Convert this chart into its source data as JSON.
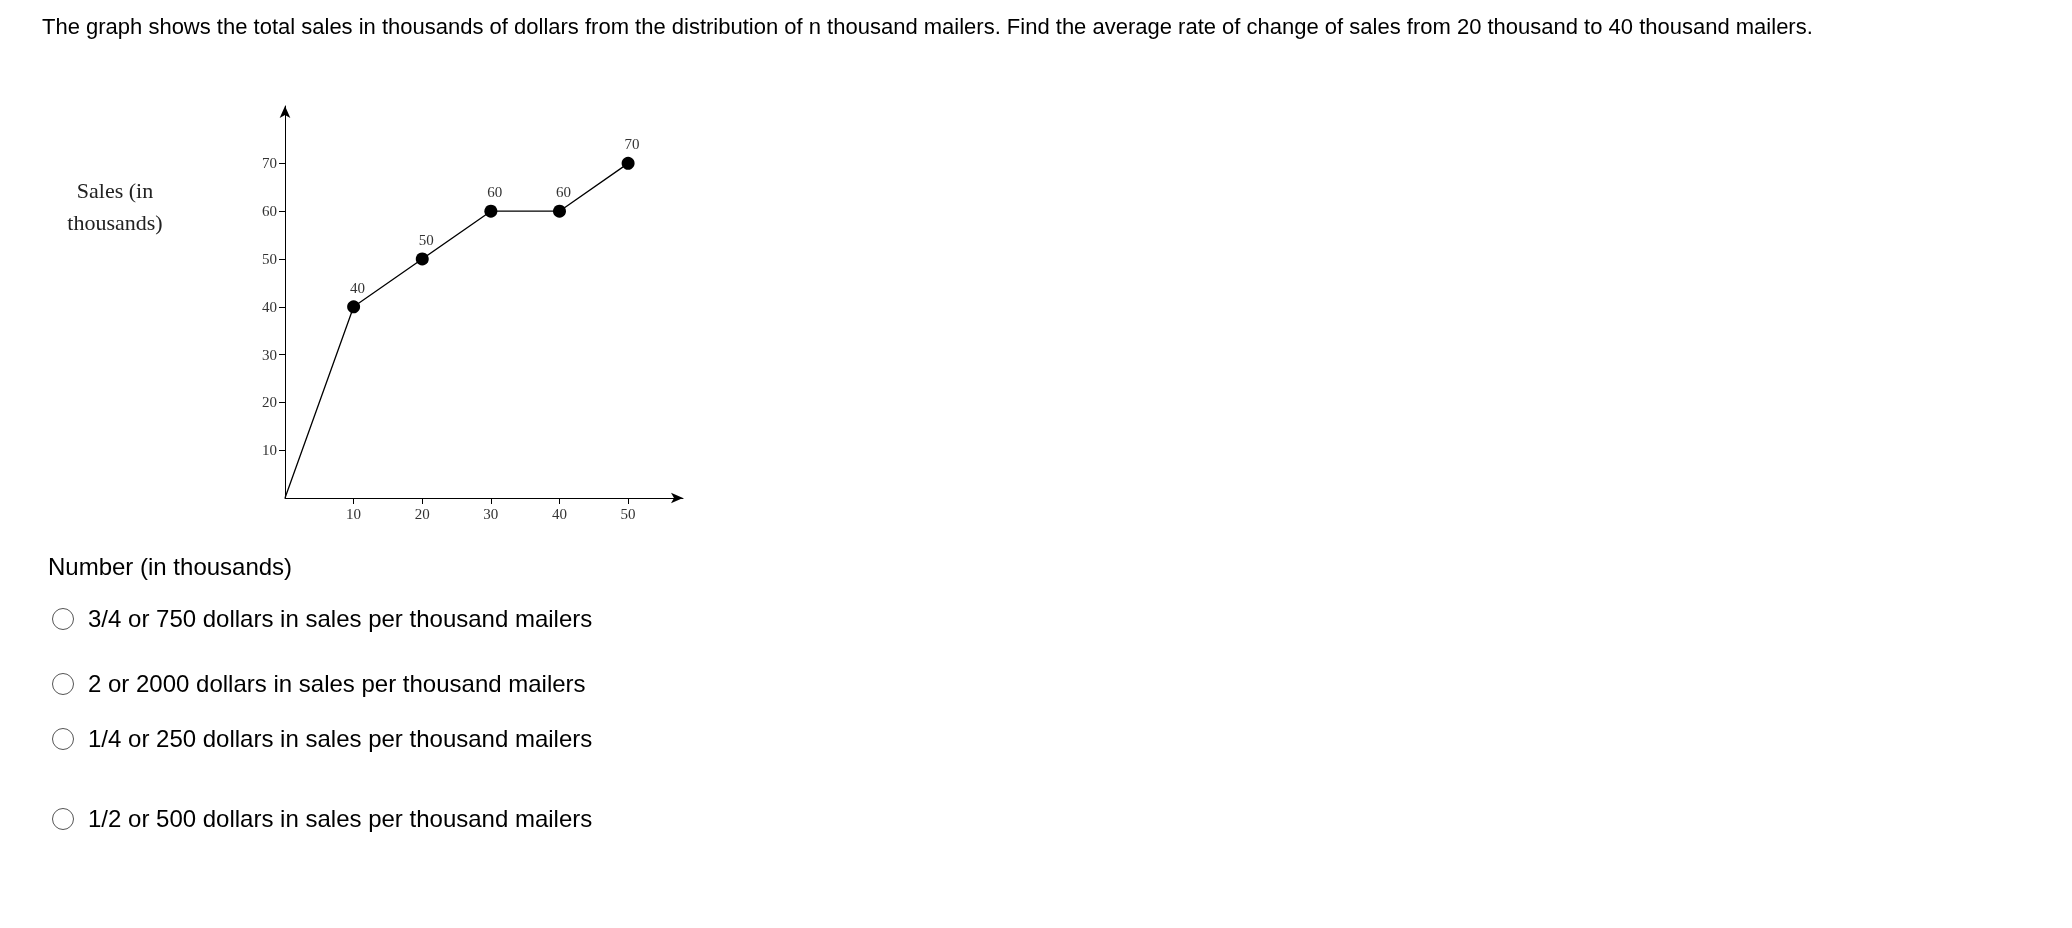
{
  "chart_data": {
    "type": "line",
    "title": "The graph shows the total sales in thousands of dollars from the distribution of n thousand mailers. Find the average rate of change of sales from 20 thousand to 40 thousand mailers.",
    "xlabel": "Number (in thousands)",
    "ylabel": "Sales (in thousands)",
    "x": [
      0,
      10,
      20,
      30,
      40,
      50
    ],
    "series": [
      {
        "color": "#000000",
        "values": [
          0,
          40,
          50,
          60,
          60,
          70
        ],
        "value_labels": [
          null,
          "40",
          "50",
          "60",
          "60",
          "70"
        ]
      }
    ],
    "xlim": [
      0,
      58
    ],
    "xticks": [
      10,
      20,
      30,
      40,
      50
    ],
    "ylim": [
      0,
      82
    ],
    "yticks": [
      10,
      20,
      30,
      40,
      50,
      60,
      70
    ],
    "grid": false,
    "marker": "circle",
    "line_style": "solid",
    "annotations": [
      "3/4 or 750 dollars in sales per thousand mailers",
      "2 or 2000 dollars in sales per thousand mailers",
      "1/4 or 250 dollars in sales per thousand mailers",
      "1/2 or 500 dollars in sales per thousand mailers"
    ]
  }
}
